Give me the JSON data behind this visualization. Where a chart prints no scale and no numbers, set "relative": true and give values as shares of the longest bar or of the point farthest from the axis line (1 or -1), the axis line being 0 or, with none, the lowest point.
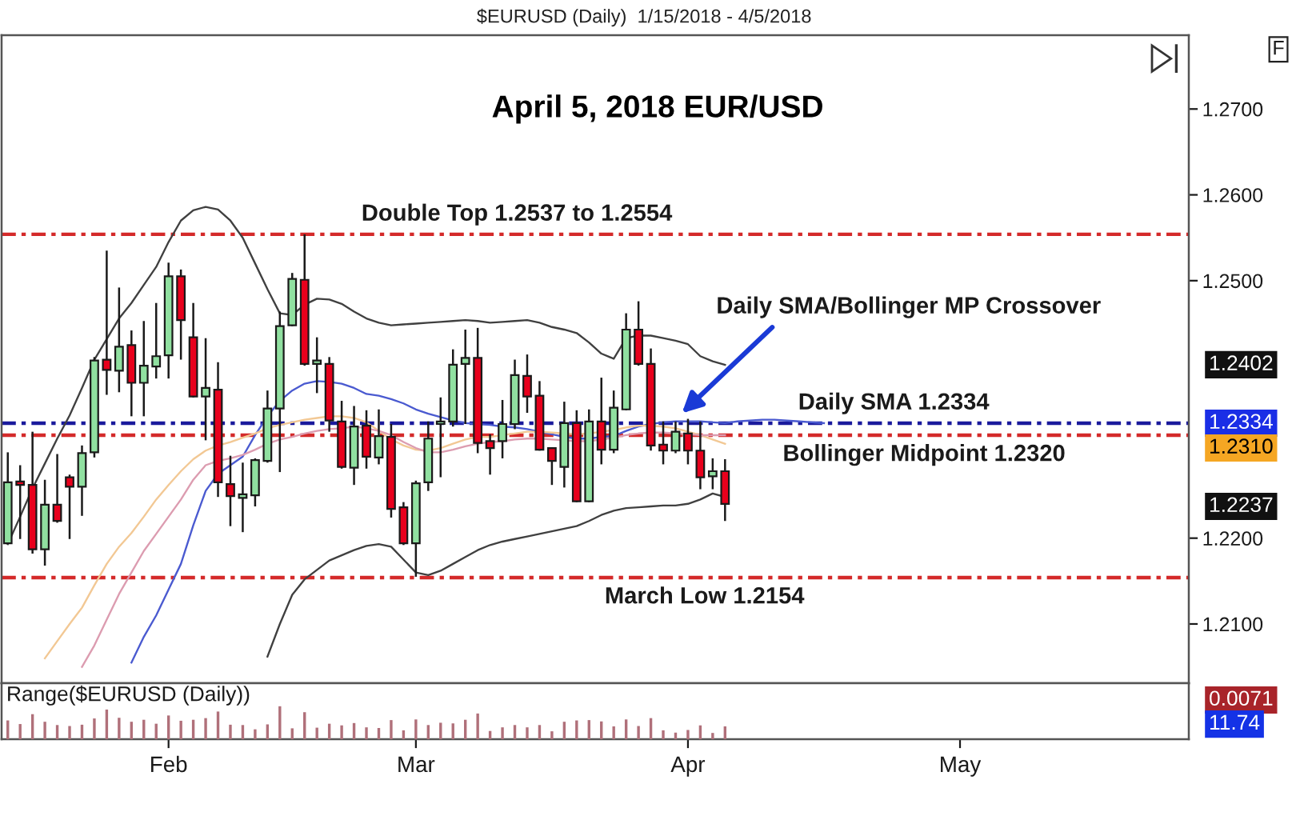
{
  "chart_data": [
    {
      "type": "candlestick",
      "title": "$EURUSD (Daily)  1/15/2018 - 4/5/2018",
      "subtitle": "April 5, 2018 EUR/USD",
      "categories": [
        null,
        null,
        null,
        null,
        null,
        null,
        null,
        null,
        null,
        null,
        null,
        null,
        null,
        null,
        null,
        null,
        null,
        null,
        null,
        null,
        null,
        null,
        null,
        null,
        null,
        null,
        null,
        null,
        null,
        null,
        null,
        null,
        null,
        null,
        null,
        null,
        null,
        null,
        null,
        null,
        null,
        null,
        null,
        null,
        null,
        null,
        null,
        null,
        null,
        null,
        null,
        null,
        null,
        null,
        null,
        null,
        null,
        null,
        null,
        null,
        null,
        null,
        null,
        null,
        null,
        null,
        null,
        null,
        null,
        null,
        null,
        null,
        null,
        null,
        null,
        null,
        null,
        null,
        null,
        null,
        null,
        null,
        null,
        null,
        null,
        null,
        null,
        null,
        null,
        null,
        null,
        null,
        null,
        null,
        null,
        null
      ],
      "ohlc": [
        [
          1.2194,
          1.23,
          1.2193,
          1.2265
        ],
        [
          1.2266,
          1.2285,
          1.2199,
          1.2262
        ],
        [
          1.2262,
          1.2324,
          1.2182,
          1.2187
        ],
        [
          1.2187,
          1.2268,
          1.2168,
          1.2239
        ],
        [
          1.2239,
          1.2298,
          1.2218,
          1.222
        ],
        [
          1.2271,
          1.2274,
          1.2199,
          1.226
        ],
        [
          1.226,
          1.2308,
          1.2226,
          1.2299
        ],
        [
          1.23,
          1.2411,
          1.2294,
          1.2407
        ],
        [
          1.2408,
          1.2535,
          1.2367,
          1.2396
        ],
        [
          1.2395,
          1.2492,
          1.237,
          1.2423
        ],
        [
          1.2425,
          1.2442,
          1.2342,
          1.2381
        ],
        [
          1.2381,
          1.2453,
          1.2342,
          1.2401
        ],
        [
          1.24,
          1.2474,
          1.2386,
          1.2412
        ],
        [
          1.2413,
          1.2521,
          1.2386,
          1.2505
        ],
        [
          1.2505,
          1.2513,
          1.2408,
          1.2454
        ],
        [
          1.2434,
          1.2474,
          1.2364,
          1.2365
        ],
        [
          1.2365,
          1.2433,
          1.2314,
          1.2375
        ],
        [
          1.2373,
          1.2405,
          1.2248,
          1.2265
        ],
        [
          1.2263,
          1.2296,
          1.2214,
          1.2249
        ],
        [
          1.2247,
          1.2288,
          1.2207,
          1.2251
        ],
        [
          1.225,
          1.2293,
          1.2237,
          1.2291
        ],
        [
          1.229,
          1.2372,
          1.2288,
          1.2351
        ],
        [
          1.2351,
          1.2464,
          1.2277,
          1.2447
        ],
        [
          1.2448,
          1.2509,
          1.2447,
          1.2502
        ],
        [
          1.2501,
          1.2554,
          1.2401,
          1.2403
        ],
        [
          1.2403,
          1.2434,
          1.2369,
          1.2407
        ],
        [
          1.2403,
          1.2411,
          1.2324,
          1.2337
        ],
        [
          1.2336,
          1.236,
          1.2281,
          1.2283
        ],
        [
          1.2282,
          1.2354,
          1.2262,
          1.233
        ],
        [
          1.2331,
          1.2349,
          1.2281,
          1.2295
        ],
        [
          1.2294,
          1.235,
          1.2286,
          1.2319
        ],
        [
          1.2318,
          1.2333,
          1.2224,
          1.2234
        ],
        [
          1.2236,
          1.2242,
          1.2192,
          1.2194
        ],
        [
          1.2194,
          1.2267,
          1.2155,
          1.2264
        ],
        [
          1.2265,
          1.2336,
          1.2255,
          1.2316
        ],
        [
          1.2333,
          1.2364,
          1.2271,
          1.2336
        ],
        [
          1.2336,
          1.242,
          1.233,
          1.2402
        ],
        [
          1.2403,
          1.2443,
          1.2333,
          1.241
        ],
        [
          1.241,
          1.2445,
          1.2299,
          1.2311
        ],
        [
          1.2313,
          1.2321,
          1.2274,
          1.2305
        ],
        [
          1.2313,
          1.2361,
          1.2293,
          1.2333
        ],
        [
          1.2333,
          1.2408,
          1.2327,
          1.239
        ],
        [
          1.2389,
          1.2414,
          1.2346,
          1.2365
        ],
        [
          1.2366,
          1.2383,
          1.2302,
          1.2303
        ],
        [
          1.2305,
          1.2306,
          1.2262,
          1.229
        ],
        [
          1.2283,
          1.2359,
          1.2259,
          1.2334
        ],
        [
          1.2334,
          1.2349,
          1.2242,
          1.2243
        ],
        [
          1.2243,
          1.235,
          1.2242,
          1.2336
        ],
        [
          1.2336,
          1.2387,
          1.2286,
          1.2303
        ],
        [
          1.2303,
          1.2372,
          1.2299,
          1.2352
        ],
        [
          1.235,
          1.2462,
          1.2349,
          1.2443
        ],
        [
          1.2443,
          1.2476,
          1.2401,
          1.2403
        ],
        [
          1.2403,
          1.2421,
          1.2302,
          1.2308
        ],
        [
          1.2309,
          1.2336,
          1.2286,
          1.2302
        ],
        [
          1.2302,
          1.2336,
          1.2299,
          1.2324
        ],
        [
          1.2322,
          1.2339,
          1.2286,
          1.2302
        ],
        [
          1.2302,
          1.2336,
          1.2257,
          1.2271
        ],
        [
          1.2272,
          1.2293,
          1.2257,
          1.2278
        ],
        [
          1.2278,
          1.2292,
          1.222,
          1.224
        ],
        null,
        null,
        null,
        null,
        null,
        null,
        null,
        null,
        null,
        null,
        null,
        null,
        null,
        null,
        null,
        null,
        null,
        null,
        null,
        null,
        null,
        null,
        null,
        null,
        null,
        null,
        null,
        null,
        null,
        null,
        null,
        null,
        null,
        null,
        null,
        null,
        null
      ],
      "colors": [
        "#90e0a0",
        "#e8001c",
        "#e8001c",
        "#90e0a0",
        "#e8001c",
        "#e8001c",
        "#90e0a0",
        "#90e0a0",
        "#e8001c",
        "#90e0a0",
        "#e8001c",
        "#90e0a0",
        "#90e0a0",
        "#90e0a0",
        "#e8001c",
        "#e8001c",
        "#90e0a0",
        "#e8001c",
        "#e8001c",
        "#90e0a0",
        "#90e0a0",
        "#90e0a0",
        "#90e0a0",
        "#90e0a0",
        "#e8001c",
        "#90e0a0",
        "#e8001c",
        "#e8001c",
        "#90e0a0",
        "#e8001c",
        "#90e0a0",
        "#e8001c",
        "#e8001c",
        "#90e0a0",
        "#90e0a0",
        "#90e0a0",
        "#90e0a0",
        "#90e0a0",
        "#e8001c",
        "#e8001c",
        "#90e0a0",
        "#90e0a0",
        "#e8001c",
        "#e8001c",
        "#e8001c",
        "#90e0a0",
        "#e8001c",
        "#90e0a0",
        "#e8001c",
        "#90e0a0",
        "#90e0a0",
        "#e8001c",
        "#e8001c",
        "#e8001c",
        "#90e0a0",
        "#e8001c",
        "#e8001c",
        "#90e0a0",
        "#e8001c",
        null,
        null,
        null,
        null,
        null,
        null,
        null,
        null,
        null,
        null,
        null,
        null,
        null,
        null,
        null,
        null,
        null,
        null,
        null,
        null,
        null,
        null,
        null,
        null,
        null,
        null,
        null,
        null,
        null,
        null,
        null,
        null,
        null,
        null,
        null,
        null,
        null
      ],
      "series": [
        {
          "type": "line",
          "color": "#404040",
          "values": [
            1.2193,
            1.2225,
            1.2258,
            1.2287,
            1.2316,
            1.2343,
            1.2375,
            1.2408,
            1.2432,
            1.2456,
            1.2474,
            1.2495,
            1.2516,
            1.2545,
            1.257,
            1.2582,
            1.2586,
            1.2583,
            1.257,
            1.255,
            1.252,
            1.249,
            1.2462,
            1.246,
            1.2472,
            1.2479,
            1.2478,
            1.2473,
            1.2464,
            1.2456,
            1.2451,
            1.2448,
            1.2449,
            1.245,
            1.2451,
            1.2452,
            1.2453,
            1.2454,
            1.2453,
            1.2451,
            1.2452,
            1.2453,
            1.2454,
            1.2451,
            1.2446,
            1.2443,
            1.2439,
            1.2428,
            1.2415,
            1.2409,
            1.2433,
            1.2436,
            1.2436,
            1.2433,
            1.243,
            1.2426,
            1.2412,
            1.2406,
            1.2402,
            null,
            null,
            null,
            null,
            null,
            null,
            null,
            null,
            null,
            null,
            null,
            null,
            null,
            null,
            null,
            null,
            null,
            null,
            null,
            null,
            null,
            null,
            null,
            null,
            null,
            null,
            null,
            null,
            null,
            null,
            null,
            null,
            null,
            null,
            null,
            null,
            null
          ]
        },
        {
          "type": "line",
          "color": "#404040",
          "values": [
            null,
            null,
            null,
            null,
            null,
            null,
            null,
            null,
            null,
            null,
            null,
            null,
            null,
            null,
            null,
            null,
            null,
            null,
            null,
            null,
            null,
            1.2062,
            1.21,
            1.2134,
            1.2152,
            1.2163,
            1.2174,
            1.218,
            1.2186,
            1.2191,
            1.2193,
            1.219,
            1.2175,
            1.216,
            1.2157,
            1.2162,
            1.217,
            1.2178,
            1.2186,
            1.2192,
            1.2196,
            1.2199,
            1.2202,
            1.2205,
            1.2208,
            1.2211,
            1.2214,
            1.222,
            1.2227,
            1.2232,
            1.2235,
            1.2236,
            1.2237,
            1.2238,
            1.2238,
            1.224,
            1.2245,
            1.2252,
            1.2248,
            null,
            null,
            null,
            null,
            null,
            null,
            null,
            null,
            null,
            null,
            null,
            null,
            null,
            null,
            null,
            null,
            null,
            null,
            null,
            null,
            null,
            null,
            null,
            null,
            null,
            null,
            null,
            null,
            null,
            null,
            null,
            null,
            null,
            null,
            null,
            null,
            null
          ]
        },
        {
          "type": "line",
          "color": "#4a5ad0",
          "values": [
            null,
            null,
            null,
            null,
            null,
            null,
            null,
            null,
            null,
            null,
            1.2055,
            1.2085,
            1.211,
            1.214,
            1.217,
            1.2215,
            1.2255,
            1.2275,
            1.2285,
            1.2295,
            1.232,
            1.2342,
            1.236,
            1.2372,
            1.238,
            1.2383,
            1.2382,
            1.238,
            1.2375,
            1.2368,
            1.2366,
            1.2362,
            1.2357,
            1.235,
            1.2345,
            1.2341,
            1.2337,
            1.2334,
            1.2333,
            1.2332,
            1.233,
            1.2329,
            1.2327,
            1.2324,
            1.2321,
            1.2318,
            1.2316,
            1.2316,
            1.2318,
            1.2319,
            1.2325,
            1.233,
            1.2333,
            1.2335,
            1.2336,
            1.2336,
            1.2336,
            1.2335,
            1.2334,
            1.2336,
            1.2337,
            1.2338,
            1.2338,
            1.2337,
            1.2336,
            1.2335,
            1.2334,
            null,
            null,
            null,
            null,
            null,
            null,
            null,
            null,
            null,
            null,
            null,
            null,
            null,
            null,
            null,
            null,
            null,
            null,
            null,
            null,
            null,
            null,
            null,
            null,
            null,
            null,
            null,
            null,
            null
          ]
        },
        {
          "type": "line",
          "color": "#f2c894",
          "values": [
            null,
            null,
            null,
            1.206,
            1.208,
            1.21,
            1.2119,
            1.2145,
            1.217,
            1.219,
            1.2206,
            1.2225,
            1.2245,
            1.2262,
            1.2278,
            1.2292,
            1.2302,
            1.2308,
            1.2312,
            1.2317,
            1.2322,
            1.2328,
            1.2332,
            1.2335,
            1.2338,
            1.234,
            1.2342,
            1.2342,
            1.234,
            1.2335,
            1.2325,
            1.2315,
            1.2308,
            1.2303,
            1.2302,
            1.2305,
            1.231,
            1.2315,
            1.2318,
            1.2318,
            1.232,
            1.2322,
            1.2324,
            1.2324,
            1.2323,
            1.2322,
            1.2321,
            1.2322,
            1.2324,
            1.2326,
            1.2329,
            1.2331,
            1.2331,
            1.233,
            1.2328,
            1.2324,
            1.232,
            1.2315,
            1.231,
            null,
            null,
            null,
            null,
            null,
            null,
            null,
            null,
            null,
            null,
            null,
            null,
            null,
            null,
            null,
            null,
            null,
            null,
            null,
            null,
            null,
            null,
            null,
            null,
            null,
            null,
            null,
            null,
            null,
            null,
            null,
            null,
            null,
            null,
            null,
            null,
            null
          ]
        },
        {
          "type": "line",
          "color": "#dc9cb0",
          "values": [
            null,
            null,
            null,
            null,
            null,
            null,
            1.205,
            1.2075,
            1.2105,
            1.2135,
            1.216,
            1.2185,
            1.2205,
            1.2225,
            1.2245,
            1.2268,
            1.2285,
            1.229,
            1.2293,
            1.2297,
            1.2303,
            1.231,
            1.2315,
            1.2318,
            1.2322,
            1.2325,
            1.2327,
            1.2328,
            1.233,
            1.2328,
            1.2325,
            1.232,
            1.2312,
            1.2305,
            1.23,
            1.23,
            1.2303,
            1.2307,
            1.231,
            1.2312,
            1.2313,
            1.2315,
            1.2316,
            1.2316,
            1.2315,
            1.2314,
            1.2313,
            1.2313,
            1.2315,
            1.2317,
            1.232,
            1.2322,
            1.2323,
            1.2323,
            1.2322,
            1.2321,
            1.232,
            1.232,
            1.232,
            null,
            null,
            null,
            null,
            null,
            null,
            null,
            null,
            null,
            null,
            null,
            null,
            null,
            null,
            null,
            null,
            null,
            null,
            null,
            null,
            null,
            null,
            null,
            null,
            null,
            null,
            null,
            null,
            null,
            null,
            null,
            null,
            null,
            null,
            null,
            null,
            null
          ]
        }
      ],
      "ylim": [
        1.2031,
        1.2786
      ],
      "yticks": [
        {
          "value": 1.21,
          "label": "1.2100"
        },
        {
          "value": 1.22,
          "label": "1.2200"
        },
        {
          "value": 1.25,
          "label": "1.2500"
        },
        {
          "value": 1.26,
          "label": "1.2600"
        },
        {
          "value": 1.27,
          "label": "1.2700"
        }
      ],
      "ref_lines": [
        {
          "axis": "y",
          "value": 1.2554,
          "label": "Double Top 1.2537 to 1.2554",
          "color": "#d42a2a",
          "line_style": "dashed"
        },
        {
          "axis": "y",
          "value": 1.2334,
          "label": "Daily SMA 1.2334",
          "color": "#1a1a9c",
          "line_style": "dashed"
        },
        {
          "axis": "y",
          "value": 1.232,
          "label": "Bollinger Midpoint 1.2320",
          "color": "#d42a2a",
          "line_style": "dashed"
        },
        {
          "axis": "y",
          "value": 1.2154,
          "label": "March Low 1.2154",
          "color": "#d42a2a",
          "line_style": "dashed"
        }
      ],
      "annotations": [
        "Daily SMA/Bollinger MP Crossover",
        "F",
        "1.2402",
        "1.2334",
        "1.2310",
        "1.2237"
      ],
      "tick_labels": "y"
    },
    {
      "type": "bar",
      "title": "Range($EURUSD (Daily))",
      "relative": true,
      "color": "#b0707a",
      "categories": [
        null,
        null,
        null,
        null,
        null,
        null,
        null,
        null,
        null,
        null,
        null,
        null,
        null,
        "Feb",
        null,
        null,
        null,
        null,
        null,
        null,
        null,
        null,
        null,
        null,
        null,
        null,
        null,
        null,
        null,
        null,
        null,
        null,
        null,
        "Mar",
        null,
        null,
        null,
        null,
        null,
        null,
        null,
        null,
        null,
        null,
        null,
        null,
        null,
        null,
        null,
        null,
        null,
        null,
        null,
        null,
        null,
        "Apr",
        null,
        null,
        null,
        null,
        null,
        null,
        null,
        null,
        null,
        null,
        null,
        null,
        null,
        null,
        null,
        null,
        null,
        null,
        null,
        null,
        null,
        "May",
        null,
        null,
        null,
        null,
        null,
        null,
        null,
        null,
        null,
        null,
        null,
        null,
        null,
        null,
        null,
        null,
        null,
        null
      ],
      "values": [
        0.57,
        0.46,
        0.76,
        0.53,
        0.43,
        0.4,
        0.44,
        0.63,
        0.9,
        0.65,
        0.53,
        0.59,
        0.47,
        0.72,
        0.56,
        0.59,
        0.64,
        0.84,
        0.44,
        0.43,
        0.3,
        0.45,
        1.0,
        0.33,
        0.82,
        0.35,
        0.47,
        0.42,
        0.49,
        0.36,
        0.34,
        0.58,
        0.27,
        0.6,
        0.43,
        0.5,
        0.48,
        0.59,
        0.78,
        0.25,
        0.36,
        0.43,
        0.36,
        0.43,
        0.24,
        0.53,
        0.57,
        0.58,
        0.54,
        0.39,
        0.6,
        0.4,
        0.64,
        0.27,
        0.2,
        0.28,
        0.42,
        0.19,
        0.39,
        null,
        null,
        null,
        null,
        null,
        null,
        null,
        null,
        null,
        null,
        null,
        null,
        null,
        null,
        null,
        null,
        null,
        null,
        null,
        null,
        null,
        null,
        null,
        null,
        null,
        null,
        null,
        null,
        null,
        null,
        null,
        null,
        null,
        null,
        null,
        null,
        null
      ],
      "annotations": [
        "0.0071",
        "11.74"
      ],
      "tick_labels": "x"
    }
  ]
}
